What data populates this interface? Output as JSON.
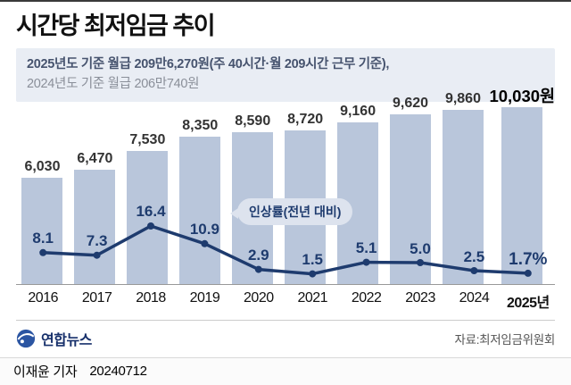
{
  "page": {
    "title": "시간당 최저임금 추이",
    "subtitle_line1": "2025년도 기준 월급 209만6,270원(주 40시간·월 209시간 근무 기준),",
    "subtitle_line2": "2024년도 기준 월급 206만740원",
    "source": "자료:최저임금위원회",
    "logo_text": "연합뉴스",
    "reporter": "이재윤 기자",
    "date": "20240712"
  },
  "chart_data": {
    "type": "bar",
    "title": "시간당 최저임금 추이",
    "categories": [
      "2016",
      "2017",
      "2018",
      "2019",
      "2020",
      "2021",
      "2022",
      "2023",
      "2024",
      "2025년"
    ],
    "bar_values": [
      6030,
      6470,
      7530,
      8350,
      8590,
      8720,
      9160,
      9620,
      9860,
      10030
    ],
    "bar_labels": [
      "6,030",
      "6,470",
      "7,530",
      "8,350",
      "8,590",
      "8,720",
      "9,160",
      "9,620",
      "9,860",
      "10,030원"
    ],
    "line_values": [
      8.1,
      7.3,
      16.4,
      10.9,
      2.9,
      1.5,
      5.1,
      5.0,
      2.5,
      1.7
    ],
    "line_labels": [
      "8.1",
      "7.3",
      "16.4",
      "10.9",
      "2.9",
      "1.5",
      "5.1",
      "5.0",
      "2.5",
      "1.7%"
    ],
    "callout_label": "인상률(전년 대비)",
    "ylim": [
      0,
      10030
    ],
    "legend_position": "none",
    "grid": false,
    "colors": {
      "bar": "#b9c6db",
      "line": "#1e3b6e"
    }
  }
}
